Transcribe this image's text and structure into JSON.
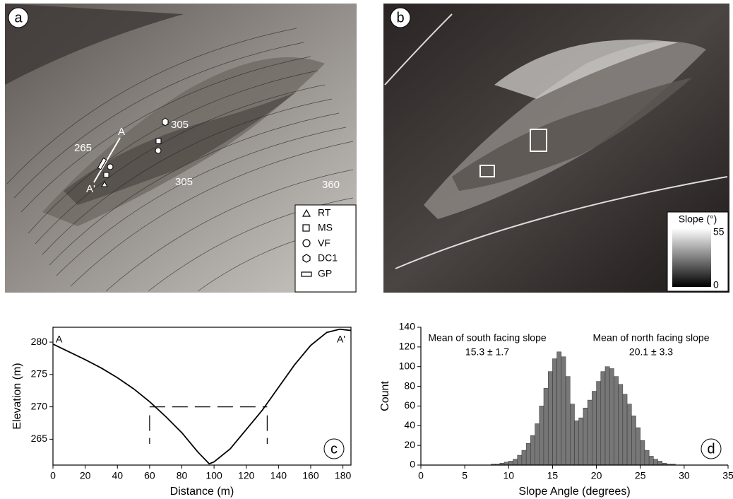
{
  "panels": {
    "a": {
      "label": "a",
      "contour_labels": [
        "265",
        "305",
        "305",
        "360"
      ],
      "profile_ends": [
        "A",
        "A'"
      ],
      "legend": [
        "RT",
        "MS",
        "VF",
        "DC1",
        "GP"
      ]
    },
    "b": {
      "label": "b",
      "legend_title": "Slope (°)",
      "legend_max": "55",
      "legend_min": "0"
    }
  },
  "chart_data": [
    {
      "type": "line",
      "label": "c",
      "xlabel": "Distance (m)",
      "ylabel": "Elevation (m)",
      "annotations": [
        "A",
        "A'"
      ],
      "x": [
        0,
        10,
        20,
        30,
        40,
        50,
        60,
        70,
        80,
        90,
        97,
        100,
        110,
        120,
        130,
        140,
        150,
        160,
        170,
        178,
        185
      ],
      "values": [
        279.7,
        278.5,
        277.3,
        276,
        274.5,
        272.8,
        270.8,
        268.5,
        266,
        263,
        261.2,
        261.5,
        263.5,
        266.5,
        269.5,
        273,
        276.5,
        279.5,
        281.5,
        282,
        281.8
      ],
      "color": "#000000",
      "dashed_level": 270,
      "dashed_x": [
        60,
        133
      ],
      "xlim": [
        0,
        185
      ],
      "ylim": [
        261,
        282.3
      ],
      "xticks": [
        0,
        20,
        40,
        60,
        80,
        100,
        120,
        140,
        160,
        180
      ],
      "yticks": [
        265,
        270,
        275,
        280
      ]
    },
    {
      "type": "histogram",
      "label": "d",
      "xlabel": "Slope Angle (degrees)",
      "ylabel": "Count",
      "annotations": [
        "Mean of south facing slope",
        "15.3 ± 1.7",
        "Mean of north facing slope",
        "20.1 ± 3.3"
      ],
      "bins": [
        8,
        8.5,
        9,
        9.5,
        10,
        10.5,
        11,
        11.5,
        12,
        12.5,
        13,
        13.5,
        14,
        14.5,
        15,
        15.5,
        16,
        16.5,
        17,
        17.5,
        18,
        18.5,
        19,
        19.5,
        20,
        20.5,
        21,
        21.5,
        22,
        22.5,
        23,
        23.5,
        24,
        24.5,
        25,
        25.5,
        26,
        26.5,
        27,
        27.5,
        28,
        28.5,
        29
      ],
      "values": [
        1,
        1,
        2,
        3,
        4,
        6,
        10,
        15,
        22,
        30,
        42,
        60,
        78,
        95,
        108,
        115,
        110,
        90,
        62,
        45,
        48,
        58,
        66,
        75,
        85,
        95,
        100,
        98,
        90,
        82,
        72,
        62,
        50,
        38,
        25,
        15,
        9,
        6,
        4,
        2,
        1,
        1
      ],
      "color": "#777777",
      "xlim": [
        0,
        35
      ],
      "ylim": [
        0,
        140
      ],
      "xticks": [
        0,
        5,
        10,
        15,
        20,
        25,
        30,
        35
      ],
      "yticks": [
        0,
        20,
        40,
        60,
        80,
        100,
        120,
        140
      ]
    }
  ]
}
